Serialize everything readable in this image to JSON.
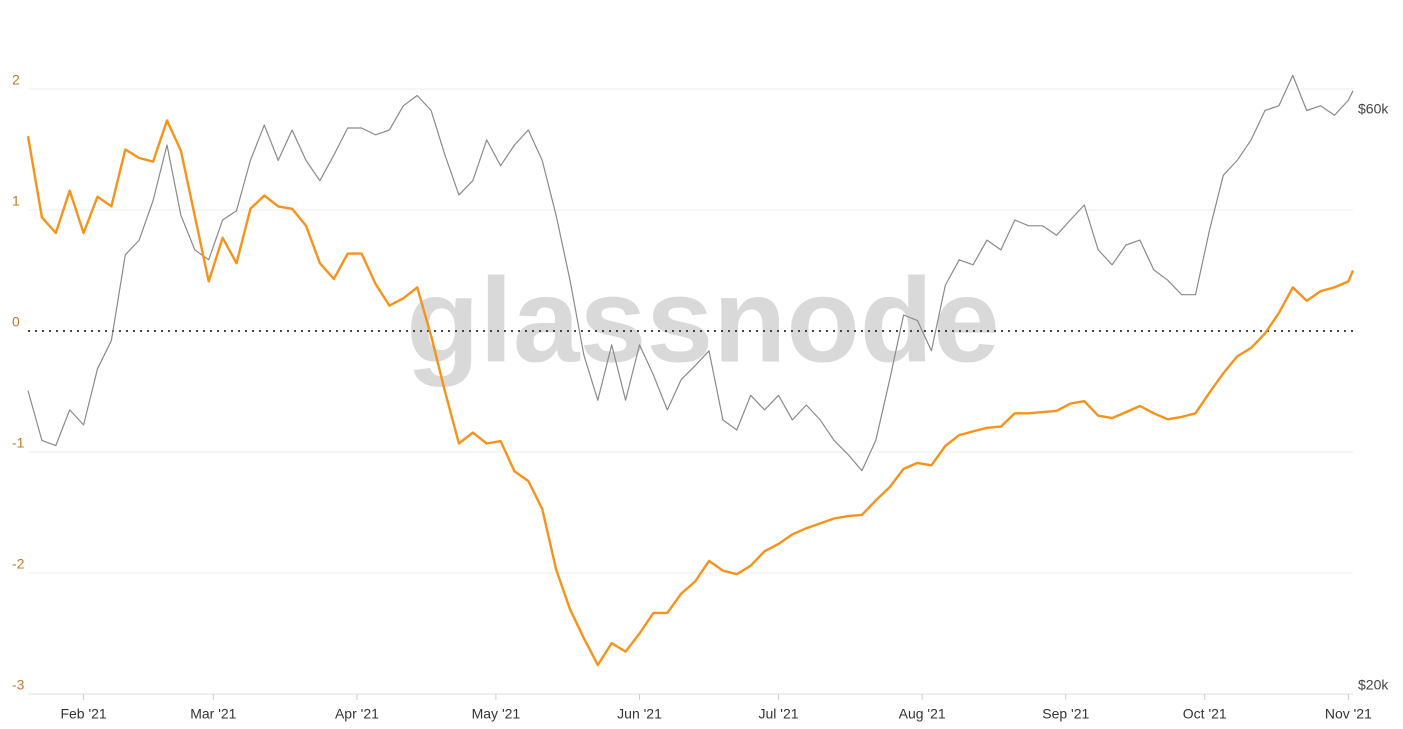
{
  "chart_data": {
    "type": "line",
    "watermark": "glassnode",
    "x": [
      19,
      22,
      25,
      28,
      31,
      34,
      37,
      40,
      43,
      46,
      49,
      52,
      55,
      58,
      61,
      64,
      67,
      70,
      73,
      76,
      79,
      82,
      85,
      88,
      91,
      94,
      97,
      100,
      103,
      106,
      109,
      112,
      115,
      118,
      121,
      124,
      127,
      130,
      133,
      136,
      139,
      142,
      145,
      148,
      151,
      154,
      157,
      160,
      163,
      166,
      169,
      172,
      175,
      178,
      181,
      184,
      187,
      190,
      193,
      196,
      199,
      202,
      205,
      208,
      211,
      214,
      217,
      220,
      223,
      226,
      229,
      232,
      235,
      238,
      241,
      244,
      247,
      250,
      253,
      256,
      259,
      262,
      265,
      268,
      271,
      274,
      277,
      280,
      283,
      286,
      289,
      292,
      295,
      298,
      301,
      304,
      305
    ],
    "xlim": [
      19,
      305
    ],
    "xticks": [
      {
        "value": 31,
        "label": "Feb '21"
      },
      {
        "value": 59,
        "label": "Mar '21"
      },
      {
        "value": 90,
        "label": "Apr '21"
      },
      {
        "value": 120,
        "label": "May '21"
      },
      {
        "value": 151,
        "label": "Jun '21"
      },
      {
        "value": 181,
        "label": "Jul '21"
      },
      {
        "value": 212,
        "label": "Aug '21"
      },
      {
        "value": 243,
        "label": "Sep '21"
      },
      {
        "value": 273,
        "label": "Oct '21"
      },
      {
        "value": 304,
        "label": "Nov '21"
      }
    ],
    "ylim": [
      -3,
      2
    ],
    "yticks": [
      -3,
      -2,
      -1,
      0,
      1,
      2
    ],
    "reference_line": 0,
    "grid": true,
    "y2lim": [
      20000,
      60000
    ],
    "y2log": true,
    "y2ticks": [
      {
        "value": 20000,
        "label": "$20k"
      },
      {
        "value": 60000,
        "label": "$60k"
      }
    ],
    "series": [
      {
        "color": "#f7931a",
        "values": [
          1.61,
          0.94,
          0.81,
          1.16,
          0.81,
          1.11,
          1.03,
          1.5,
          1.43,
          1.4,
          1.74,
          1.49,
          0.95,
          0.41,
          0.77,
          0.56,
          1.01,
          1.12,
          1.03,
          1.01,
          0.87,
          0.56,
          0.43,
          0.64,
          0.64,
          0.39,
          0.21,
          0.27,
          0.36,
          -0.04,
          -0.5,
          -0.93,
          -0.84,
          -0.93,
          -0.91,
          -1.16,
          -1.24,
          -1.47,
          -1.97,
          -2.3,
          -2.54,
          -2.76,
          -2.58,
          -2.65,
          -2.5,
          -2.33,
          -2.33,
          -2.17,
          -2.07,
          -1.9,
          -1.98,
          -2.01,
          -1.94,
          -1.82,
          -1.76,
          -1.68,
          -1.63,
          -1.59,
          -1.55,
          -1.53,
          -1.52,
          -1.4,
          -1.29,
          -1.14,
          -1.09,
          -1.11,
          -0.95,
          -0.86,
          -0.83,
          -0.8,
          -0.79,
          -0.68,
          -0.68,
          -0.67,
          -0.66,
          -0.6,
          -0.58,
          -0.7,
          -0.72,
          -0.67,
          -0.62,
          -0.68,
          -0.73,
          -0.71,
          -0.68,
          -0.51,
          -0.35,
          -0.21,
          -0.14,
          -0.02,
          0.15,
          0.36,
          0.25,
          0.33,
          0.36,
          0.41,
          0.5
        ]
      },
      {
        "color": "#8a8a8a",
        "axis": "y2",
        "values": [
          34700,
          31700,
          31400,
          33500,
          32600,
          36100,
          38000,
          44400,
          45600,
          49000,
          54200,
          47700,
          44800,
          44000,
          47300,
          48100,
          52700,
          56200,
          52700,
          55700,
          52700,
          50800,
          53200,
          55900,
          55900,
          55200,
          55700,
          58200,
          59300,
          57700,
          53200,
          49500,
          50800,
          54700,
          52200,
          54200,
          55700,
          52700,
          47700,
          42400,
          37000,
          34100,
          37700,
          34100,
          37700,
          35700,
          33500,
          35400,
          36300,
          37300,
          32900,
          32300,
          34400,
          33500,
          34400,
          32900,
          33800,
          32900,
          31700,
          30900,
          30000,
          31700,
          35400,
          39800,
          39400,
          37300,
          42000,
          44000,
          43600,
          45600,
          44800,
          47300,
          46800,
          46800,
          46000,
          47300,
          48600,
          44800,
          43600,
          45200,
          45600,
          43200,
          42400,
          41300,
          41300,
          46400,
          51300,
          52700,
          54700,
          57700,
          58200,
          61500,
          57700,
          58200,
          57200,
          58800,
          59800
        ]
      }
    ]
  }
}
